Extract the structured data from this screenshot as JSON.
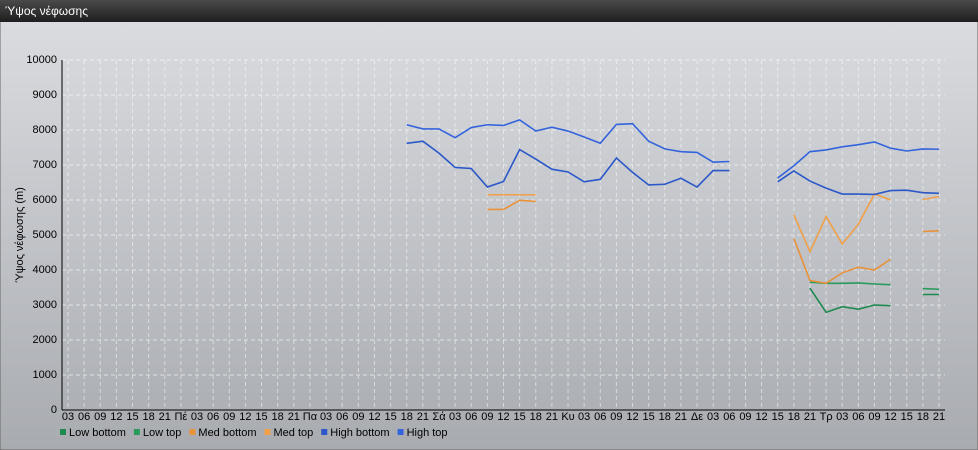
{
  "panel": {
    "title": "Ύψος νέφωσης"
  },
  "chart_data": {
    "type": "line",
    "y_label": "Ύψος νέφωσης (m)",
    "categories": [
      "03",
      "06",
      "09",
      "12",
      "15",
      "18",
      "21",
      "Πέ",
      "03",
      "06",
      "09",
      "12",
      "15",
      "18",
      "21",
      "Πα",
      "03",
      "06",
      "09",
      "12",
      "15",
      "18",
      "21",
      "Σά",
      "03",
      "06",
      "09",
      "12",
      "15",
      "18",
      "21",
      "Κυ",
      "03",
      "06",
      "09",
      "12",
      "15",
      "18",
      "21",
      "Δε",
      "03",
      "06",
      "09",
      "12",
      "15",
      "18",
      "21",
      "Τρ",
      "03",
      "06",
      "09",
      "12",
      "15",
      "18",
      "21"
    ],
    "ylim": [
      0,
      10000
    ],
    "yticks": [
      0,
      1000,
      2000,
      3000,
      4000,
      5000,
      6000,
      7000,
      8000,
      9000,
      10000
    ],
    "grid": true,
    "series": [
      {
        "name": "Low bottom",
        "color": "#1e8a50",
        "values": [
          null,
          null,
          null,
          null,
          null,
          null,
          null,
          null,
          null,
          null,
          null,
          null,
          null,
          null,
          null,
          null,
          null,
          null,
          null,
          null,
          null,
          null,
          null,
          null,
          null,
          null,
          null,
          null,
          null,
          null,
          null,
          null,
          null,
          null,
          null,
          null,
          null,
          null,
          null,
          null,
          null,
          null,
          null,
          null,
          null,
          null,
          3480,
          2790,
          2950,
          2880,
          3000,
          2980,
          null,
          3300,
          3300
        ]
      },
      {
        "name": "Low top",
        "color": "#2a9a5c",
        "values": [
          null,
          null,
          null,
          null,
          null,
          null,
          null,
          null,
          null,
          null,
          null,
          null,
          null,
          null,
          null,
          null,
          null,
          null,
          null,
          null,
          null,
          null,
          null,
          null,
          null,
          null,
          null,
          null,
          null,
          null,
          null,
          null,
          null,
          null,
          null,
          null,
          null,
          null,
          null,
          null,
          null,
          null,
          null,
          null,
          null,
          null,
          3650,
          3620,
          3620,
          3630,
          3600,
          3580,
          null,
          3470,
          3450
        ]
      },
      {
        "name": "Med bottom",
        "color": "#e8923a",
        "values": [
          null,
          null,
          null,
          null,
          null,
          null,
          null,
          null,
          null,
          null,
          null,
          null,
          null,
          null,
          null,
          null,
          null,
          null,
          null,
          null,
          null,
          null,
          null,
          null,
          null,
          null,
          5730,
          5730,
          5990,
          5960,
          null,
          null,
          null,
          null,
          null,
          null,
          null,
          null,
          null,
          null,
          null,
          null,
          null,
          null,
          null,
          4900,
          3700,
          3620,
          3920,
          4080,
          4000,
          4310,
          null,
          5100,
          5120
        ]
      },
      {
        "name": "Med top",
        "color": "#f0a048",
        "values": [
          null,
          null,
          null,
          null,
          null,
          null,
          null,
          null,
          null,
          null,
          null,
          null,
          null,
          null,
          null,
          null,
          null,
          null,
          null,
          null,
          null,
          null,
          null,
          null,
          null,
          null,
          6150,
          6150,
          6150,
          6150,
          null,
          null,
          null,
          null,
          null,
          null,
          null,
          null,
          null,
          null,
          null,
          null,
          null,
          null,
          null,
          5580,
          4520,
          5530,
          4740,
          5310,
          6170,
          6000,
          null,
          6010,
          6100
        ]
      },
      {
        "name": "High bottom",
        "color": "#2a58c8",
        "values": [
          null,
          null,
          null,
          null,
          null,
          null,
          null,
          null,
          null,
          null,
          null,
          null,
          null,
          null,
          null,
          null,
          null,
          null,
          null,
          null,
          null,
          7620,
          7680,
          7340,
          6930,
          6900,
          6370,
          6530,
          7440,
          7170,
          6880,
          6800,
          6520,
          6590,
          7200,
          6790,
          6430,
          6450,
          6620,
          6370,
          6840,
          6840,
          null,
          null,
          6520,
          6830,
          6540,
          6340,
          6170,
          6170,
          6160,
          6270,
          6280,
          6210,
          6190
        ]
      },
      {
        "name": "High top",
        "color": "#3464dc",
        "values": [
          null,
          null,
          null,
          null,
          null,
          null,
          null,
          null,
          null,
          null,
          null,
          null,
          null,
          null,
          null,
          null,
          null,
          null,
          null,
          null,
          null,
          8150,
          8030,
          8030,
          7780,
          8070,
          8150,
          8130,
          8290,
          7970,
          8080,
          7970,
          7800,
          7620,
          8160,
          8180,
          7680,
          7460,
          7380,
          7360,
          7080,
          7100,
          null,
          null,
          6630,
          6980,
          7380,
          7430,
          7520,
          7580,
          7660,
          7480,
          7400,
          7460,
          7450
        ]
      }
    ]
  }
}
